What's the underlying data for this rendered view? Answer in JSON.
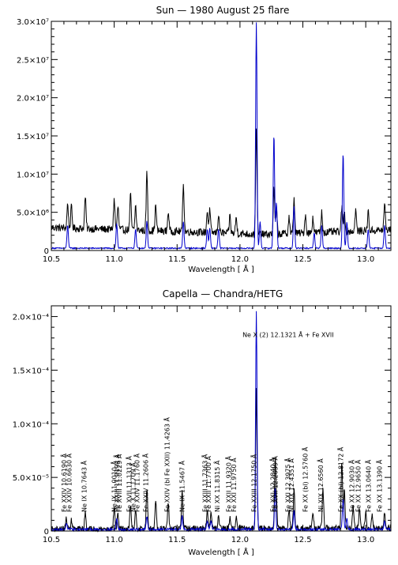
{
  "chart_data": [
    {
      "type": "line",
      "title": "Sun — 1980 August 25 flare",
      "xlabel": "Wavelength [ Å ]",
      "ylabel": "",
      "xlim": [
        10.5,
        13.2
      ],
      "ylim": [
        0,
        30000000
      ],
      "x_ticks": [
        "10.5",
        "11.0",
        "11.5",
        "12.0",
        "12.5",
        "13.0"
      ],
      "y_ticks": [
        "0",
        "5.0×10⁶",
        "1.0×10⁷",
        "1.5×10⁷",
        "2.0×10⁷",
        "2.5×10⁷",
        "3.0×10⁷"
      ],
      "grid": false,
      "series": [
        {
          "color": "#000000",
          "continuum": [
            [
              10.5,
              3000000
            ],
            [
              11.5,
              2500000
            ],
            [
              12.2,
              2100000
            ],
            [
              13.2,
              2700000
            ]
          ],
          "noise": 500000,
          "peaks": [
            [
              10.63,
              3200000
            ],
            [
              10.66,
              2800000
            ],
            [
              10.77,
              4200000
            ],
            [
              11.0,
              4000000
            ],
            [
              11.03,
              3000000
            ],
            [
              11.13,
              4600000
            ],
            [
              11.17,
              3200000
            ],
            [
              11.26,
              7600000
            ],
            [
              11.33,
              3300000
            ],
            [
              11.43,
              2600000
            ],
            [
              11.55,
              6400000
            ],
            [
              11.74,
              2800000
            ],
            [
              11.76,
              2900000
            ],
            [
              11.83,
              2500000
            ],
            [
              11.92,
              2300000
            ],
            [
              11.97,
              2100000
            ],
            [
              12.13,
              13500000
            ],
            [
              12.27,
              6000000
            ],
            [
              12.29,
              3200000
            ],
            [
              12.39,
              2200000
            ],
            [
              12.43,
              4500000
            ],
            [
              12.52,
              2400000
            ],
            [
              12.58,
              2000000
            ],
            [
              12.65,
              2600000
            ],
            [
              12.81,
              3200000
            ],
            [
              12.83,
              2600000
            ],
            [
              12.92,
              2800000
            ],
            [
              13.02,
              2500000
            ],
            [
              13.15,
              3400000
            ]
          ]
        },
        {
          "color": "#0000cc",
          "continuum": [
            [
              10.5,
              300000
            ],
            [
              13.2,
              300000
            ]
          ],
          "noise": 80000,
          "peaks": [
            [
              10.63,
              3000000
            ],
            [
              11.02,
              3200000
            ],
            [
              11.17,
              2500000
            ],
            [
              11.26,
              3500000
            ],
            [
              11.55,
              3500000
            ],
            [
              11.74,
              2500000
            ],
            [
              11.76,
              2600000
            ],
            [
              11.83,
              2500000
            ],
            [
              12.13,
              29500000
            ],
            [
              12.16,
              3500000
            ],
            [
              12.27,
              15000000
            ],
            [
              12.29,
              6000000
            ],
            [
              12.43,
              5500000
            ],
            [
              12.59,
              2000000
            ],
            [
              12.65,
              3000000
            ],
            [
              12.82,
              12500000
            ],
            [
              12.85,
              3500000
            ],
            [
              13.02,
              2500000
            ],
            [
              13.15,
              3000000
            ]
          ]
        }
      ]
    },
    {
      "type": "line",
      "title": "Capella — Chandra/HETG",
      "xlabel": "Wavelength [ Å ]",
      "ylabel": "",
      "xlim": [
        10.5,
        13.2
      ],
      "ylim": [
        0,
        0.00021
      ],
      "x_ticks": [
        "10.5",
        "11.0",
        "11.5",
        "12.0",
        "12.5",
        "13.0"
      ],
      "y_ticks": [
        "0",
        "5.0×10⁻⁵",
        "1.0×10⁻⁴",
        "1.5×10⁻⁴",
        "2.0×10⁻⁴"
      ],
      "grid": false,
      "series": [
        {
          "color": "#000000",
          "continuum": [
            [
              10.5,
              2e-06
            ],
            [
              13.2,
              3e-06
            ]
          ],
          "noise": 2.5e-06,
          "peaks": [
            [
              10.62,
              1e-05
            ],
            [
              10.66,
              8e-06
            ],
            [
              10.77,
              1.5e-05
            ],
            [
              11.0,
              2e-05
            ],
            [
              11.03,
              1.4e-05
            ],
            [
              11.13,
              2.2e-05
            ],
            [
              11.17,
              1.8e-05
            ],
            [
              11.26,
              3.8e-05
            ],
            [
              11.33,
              2.8e-05
            ],
            [
              11.43,
              2.3e-05
            ],
            [
              11.54,
              3.4e-05
            ],
            [
              11.74,
              1.8e-05
            ],
            [
              11.77,
              1.4e-05
            ],
            [
              11.83,
              1.2e-05
            ],
            [
              11.92,
              1e-05
            ],
            [
              11.97,
              1e-05
            ],
            [
              12.13,
              0.00013
            ],
            [
              12.28,
              6e-05
            ],
            [
              12.29,
              2e-05
            ],
            [
              12.39,
              1.8e-05
            ],
            [
              12.43,
              3.6e-05
            ],
            [
              12.58,
              1.6e-05
            ],
            [
              12.66,
              3.6e-05
            ],
            [
              12.81,
              6.2e-05
            ],
            [
              12.83,
              3.5e-05
            ],
            [
              12.9,
              2e-05
            ],
            [
              12.95,
              1.8e-05
            ],
            [
              13.0,
              1.5e-05
            ],
            [
              13.05,
              1.2e-05
            ],
            [
              13.15,
              1.4e-05
            ]
          ]
        },
        {
          "color": "#0000cc",
          "continuum": [
            [
              10.5,
              1.5e-06
            ],
            [
              13.2,
              1.5e-06
            ]
          ],
          "noise": 1.2e-06,
          "peaks": [
            [
              10.62,
              6e-06
            ],
            [
              11.02,
              1e-05
            ],
            [
              11.26,
              1.2e-05
            ],
            [
              11.54,
              1.2e-05
            ],
            [
              11.74,
              8e-06
            ],
            [
              11.77,
              8e-06
            ],
            [
              12.13,
              0.000203
            ],
            [
              12.28,
              4e-05
            ],
            [
              12.43,
              1.8e-05
            ],
            [
              12.82,
              2.8e-05
            ],
            [
              12.85,
              1e-05
            ],
            [
              13.15,
              8e-06
            ]
          ]
        }
      ],
      "annotations": [
        {
          "x": 10.6,
          "label": "Fe XXIV 10.6190 Å",
          "rot": -90
        },
        {
          "x": 10.64,
          "label": "Fe XXIV 10.6630 Å",
          "rot": -90
        },
        {
          "x": 10.76,
          "label": "Ne IX 10.7643 Å",
          "rot": -90
        },
        {
          "x": 11.0,
          "label": "Ne IX 11.0010 Å",
          "rot": -90
        },
        {
          "x": 11.02,
          "label": "Fe XXIII 11.0194 Å",
          "rot": -90
        },
        {
          "x": 11.04,
          "label": "Fe XVIII 11.0229 Å",
          "rot": -90
        },
        {
          "x": 11.12,
          "label": "Fe XVII 11.1313 Å",
          "rot": -90
        },
        {
          "x": 11.15,
          "label": "Ne X 11.1709 Å",
          "rot": -90
        },
        {
          "x": 11.18,
          "label": "Fe XXIV 11.1760 Å",
          "rot": -90
        },
        {
          "x": 11.25,
          "label": "Fe XXIV 11.2606 Å",
          "rot": -90
        },
        {
          "x": 11.42,
          "label": "Fe XXIV (bl Fe XXII) 11.4263 Å",
          "rot": -90
        },
        {
          "x": 11.54,
          "label": "Ne IX 11.5467 Å",
          "rot": -90
        },
        {
          "x": 11.72,
          "label": "Fe XXIII 11.7363 Å",
          "rot": -90
        },
        {
          "x": 11.75,
          "label": "Fe XXII 11.7700 Å",
          "rot": -90
        },
        {
          "x": 11.82,
          "label": "Ni XX 11.8315 Å",
          "rot": -90
        },
        {
          "x": 11.91,
          "label": "Fe XXII 11.9320 Å",
          "rot": -90
        },
        {
          "x": 11.95,
          "label": "Fe XXI 11.9750 Å",
          "rot": -90
        },
        {
          "x": 12.02,
          "label": "Ne X (2)  12.1321 Å + Fe XVII",
          "rot": 0
        },
        {
          "x": 12.11,
          "label": "Fe XXIII 12.1750 Å",
          "rot": -90
        },
        {
          "x": 12.26,
          "label": "Fe XXI 12.2840 Å",
          "rot": -90
        },
        {
          "x": 12.28,
          "label": "Fe XVII 12.2639 Å",
          "rot": -90
        },
        {
          "x": 12.38,
          "label": "Fe XXI 12.3975 Å",
          "rot": -90
        },
        {
          "x": 12.41,
          "label": "Ni XIX 12.4351 Å",
          "rot": -90
        },
        {
          "x": 12.52,
          "label": "Fe XX (bl) 12.5760 Å",
          "rot": -90
        },
        {
          "x": 12.64,
          "label": "Ni XIX 12.6560 Å",
          "rot": -90
        },
        {
          "x": 12.8,
          "label": "Fe XX (bl) 12.8172 Å",
          "rot": -90
        },
        {
          "x": 12.89,
          "label": "Fe XX 12.9030 Å",
          "rot": -90
        },
        {
          "x": 12.94,
          "label": "Fe XX 12.9650 Å",
          "rot": -90
        },
        {
          "x": 13.02,
          "label": "Fe XX 13.0640 Å",
          "rot": -90
        },
        {
          "x": 13.11,
          "label": "Fe XX 13.1390 Å",
          "rot": -90
        }
      ]
    }
  ]
}
